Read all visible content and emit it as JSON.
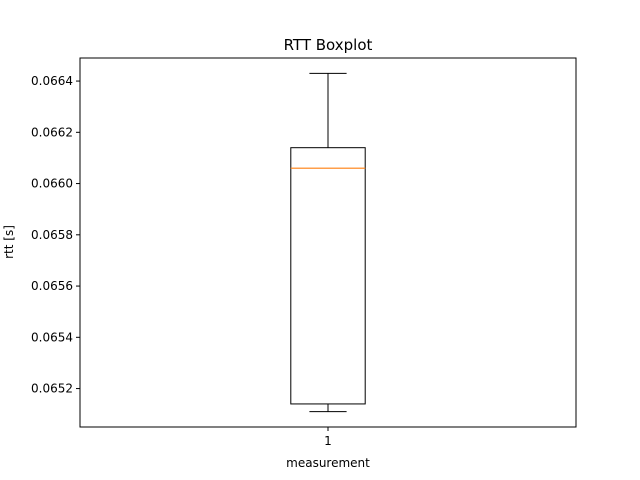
{
  "chart_data": {
    "type": "boxplot",
    "title": "RTT Boxplot",
    "xlabel": "measurement",
    "ylabel": "rtt [s]",
    "categories": [
      "1"
    ],
    "boxes": [
      {
        "category": "1",
        "whisker_low": 0.06511,
        "q1": 0.06514,
        "median": 0.06606,
        "q3": 0.06614,
        "whisker_high": 0.06643
      }
    ],
    "ylim": [
      0.06505,
      0.06649
    ],
    "yticks": [
      0.0652,
      0.0654,
      0.0656,
      0.0658,
      0.066,
      0.0662,
      0.0664
    ],
    "ytick_labels": [
      "0.0652",
      "0.0654",
      "0.0656",
      "0.0658",
      "0.0660",
      "0.0662",
      "0.0664"
    ],
    "grid": false,
    "colors": {
      "box": "#000000",
      "median": "#ff7f0e"
    }
  }
}
